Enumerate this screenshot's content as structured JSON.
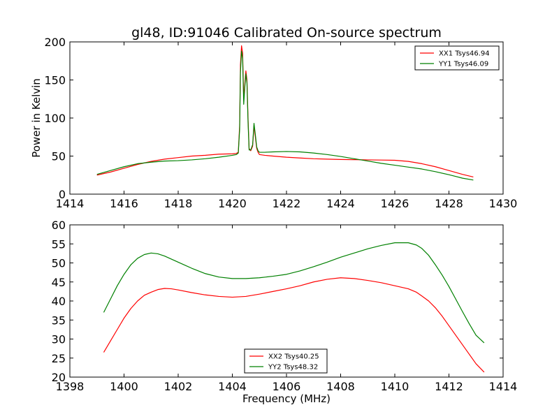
{
  "figure": {
    "title": "gl48, ID:91046 Calibrated On-source spectrum"
  },
  "chart_data": [
    {
      "type": "line",
      "title": "gl48, ID:91046 Calibrated On-source spectrum",
      "xlabel": "",
      "ylabel": "Power in Kelvin",
      "xlim": [
        1414,
        1430
      ],
      "ylim": [
        0,
        200
      ],
      "xticks": [
        1414,
        1416,
        1418,
        1420,
        1422,
        1424,
        1426,
        1428,
        1430
      ],
      "yticks": [
        0,
        50,
        100,
        150,
        200
      ],
      "legend_position": "top-right",
      "grid": false,
      "series": [
        {
          "name": "XX1 Tsys46.94",
          "color": "#ff0000",
          "x": [
            1415.0,
            1415.5,
            1416.0,
            1416.5,
            1417.0,
            1417.5,
            1418.0,
            1418.5,
            1419.0,
            1419.5,
            1420.0,
            1420.15,
            1420.22,
            1420.27,
            1420.3,
            1420.34,
            1420.38,
            1420.42,
            1420.46,
            1420.5,
            1420.54,
            1420.58,
            1420.62,
            1420.68,
            1420.75,
            1420.8,
            1420.85,
            1420.9,
            1420.95,
            1421.0,
            1421.2,
            1421.5,
            1422.0,
            1422.5,
            1423.0,
            1423.5,
            1424.0,
            1424.5,
            1425.0,
            1425.5,
            1426.0,
            1426.5,
            1427.0,
            1427.5,
            1428.0,
            1428.5,
            1428.9
          ],
          "y": [
            25,
            29,
            34,
            39,
            43,
            46,
            48,
            50,
            51,
            52.5,
            53,
            53.5,
            55,
            90,
            170,
            195,
            185,
            125,
            145,
            162,
            150,
            100,
            60,
            57,
            63,
            90,
            75,
            60,
            55,
            52,
            51,
            50,
            48.5,
            47.5,
            46.5,
            46,
            45.5,
            45.3,
            45,
            44.8,
            44.5,
            43,
            40,
            36,
            31,
            26,
            22.5
          ]
        },
        {
          "name": "YY1 Tsys46.09",
          "color": "#008000",
          "x": [
            1415.0,
            1415.5,
            1416.0,
            1416.5,
            1417.0,
            1417.5,
            1418.0,
            1418.5,
            1419.0,
            1419.5,
            1420.0,
            1420.15,
            1420.22,
            1420.27,
            1420.3,
            1420.34,
            1420.38,
            1420.42,
            1420.46,
            1420.5,
            1420.54,
            1420.58,
            1420.62,
            1420.68,
            1420.75,
            1420.8,
            1420.85,
            1420.9,
            1420.95,
            1421.0,
            1421.2,
            1421.5,
            1422.0,
            1422.5,
            1423.0,
            1423.5,
            1424.0,
            1424.5,
            1425.0,
            1425.5,
            1426.0,
            1426.5,
            1427.0,
            1427.5,
            1428.0,
            1428.5,
            1428.9
          ],
          "y": [
            26,
            31,
            36,
            40,
            42,
            43.5,
            44,
            45,
            46.5,
            48.5,
            51,
            52,
            54,
            85,
            160,
            188,
            178,
            118,
            140,
            158,
            146,
            95,
            58,
            58,
            65,
            93,
            78,
            62,
            57,
            55,
            55,
            55.5,
            56,
            55.5,
            54,
            52,
            49.5,
            46.5,
            43.5,
            40.5,
            38,
            35.5,
            33,
            29.5,
            25.5,
            21,
            18.5
          ]
        }
      ]
    },
    {
      "type": "line",
      "title": "",
      "xlabel": "Frequency (MHz)",
      "ylabel": "",
      "xlim": [
        1398,
        1414
      ],
      "ylim": [
        20,
        60
      ],
      "xticks": [
        1398,
        1400,
        1402,
        1404,
        1406,
        1408,
        1410,
        1412,
        1414
      ],
      "yticks": [
        20,
        25,
        30,
        35,
        40,
        45,
        50,
        55,
        60
      ],
      "legend_position": "bottom-center",
      "grid": false,
      "series": [
        {
          "name": "XX2 Tsys40.25",
          "color": "#ff0000",
          "x": [
            1399.25,
            1399.5,
            1399.75,
            1400.0,
            1400.25,
            1400.5,
            1400.75,
            1401.0,
            1401.25,
            1401.5,
            1401.75,
            1402.0,
            1402.5,
            1403.0,
            1403.5,
            1404.0,
            1404.5,
            1405.0,
            1405.5,
            1406.0,
            1406.5,
            1407.0,
            1407.5,
            1408.0,
            1408.5,
            1409.0,
            1409.5,
            1410.0,
            1410.5,
            1410.8,
            1411.0,
            1411.25,
            1411.5,
            1411.75,
            1412.0,
            1412.25,
            1412.5,
            1412.75,
            1413.0,
            1413.3
          ],
          "y": [
            26.5,
            29.5,
            32.5,
            35.5,
            38,
            40,
            41.5,
            42.3,
            43,
            43.3,
            43.2,
            42.9,
            42.2,
            41.6,
            41.2,
            41,
            41.2,
            41.8,
            42.5,
            43.2,
            44,
            45,
            45.7,
            46.1,
            45.9,
            45.4,
            44.8,
            44,
            43.2,
            42.3,
            41.3,
            40,
            38.2,
            36,
            33.5,
            31,
            28.5,
            26,
            23.5,
            21.3
          ]
        },
        {
          "name": "YY2 Tsys48.32",
          "color": "#008000",
          "x": [
            1399.25,
            1399.5,
            1399.75,
            1400.0,
            1400.25,
            1400.5,
            1400.75,
            1401.0,
            1401.25,
            1401.5,
            1401.75,
            1402.0,
            1402.5,
            1403.0,
            1403.5,
            1404.0,
            1404.5,
            1405.0,
            1405.5,
            1406.0,
            1406.5,
            1407.0,
            1407.5,
            1408.0,
            1408.5,
            1409.0,
            1409.5,
            1410.0,
            1410.5,
            1410.8,
            1411.0,
            1411.25,
            1411.5,
            1411.75,
            1412.0,
            1412.25,
            1412.5,
            1412.75,
            1413.0,
            1413.3
          ],
          "y": [
            37,
            40.5,
            44,
            47,
            49.5,
            51.2,
            52.2,
            52.6,
            52.4,
            51.8,
            51,
            50.2,
            48.6,
            47.2,
            46.3,
            45.9,
            45.9,
            46.1,
            46.5,
            47,
            47.9,
            49,
            50.2,
            51.5,
            52.6,
            53.7,
            54.6,
            55.3,
            55.3,
            54.7,
            53.8,
            52,
            49.5,
            46.8,
            43.8,
            40.5,
            37.2,
            34,
            31,
            29
          ]
        }
      ]
    }
  ]
}
